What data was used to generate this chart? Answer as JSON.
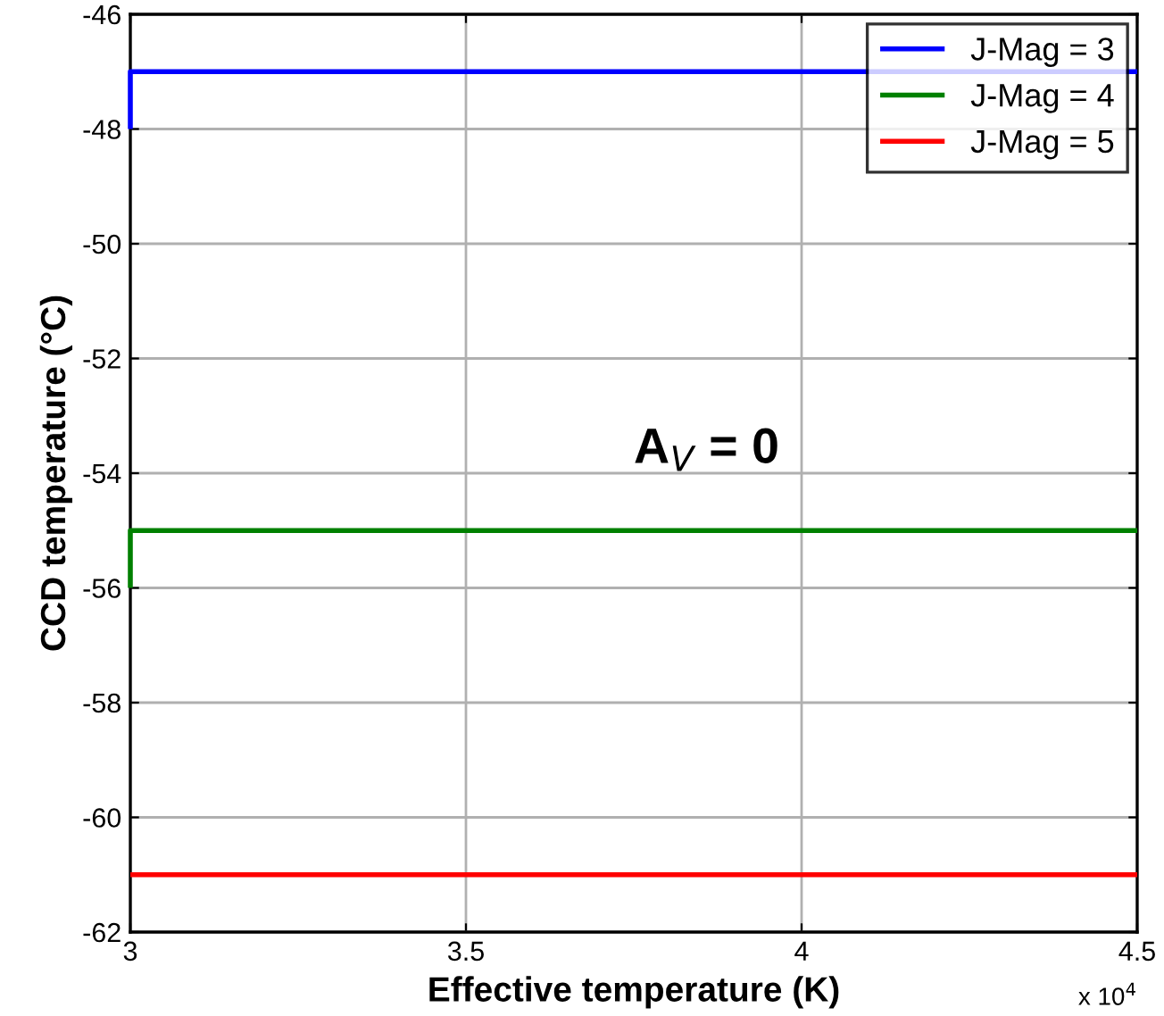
{
  "chart_data": {
    "type": "step",
    "xlabel": "Effective temperature (K)",
    "ylabel": "CCD temperature (°C)",
    "series": [
      {
        "name": "J-Mag = 3",
        "color": "#0000ff",
        "values": [
          -48,
          -47
        ]
      },
      {
        "name": "J-Mag = 4",
        "color": "#008000",
        "values": [
          -56,
          -55
        ]
      },
      {
        "name": "J-Mag = 5",
        "color": "#ff0000",
        "values": [
          -61,
          -61
        ]
      }
    ],
    "x": [
      3,
      4.5
    ],
    "xlim": [
      3,
      4.5
    ],
    "ylim": [
      -62,
      -46
    ],
    "xticks": [
      3,
      3.5,
      4,
      4.5
    ],
    "yticks": [
      -62,
      -60,
      -58,
      -56,
      -54,
      -52,
      -50,
      -48,
      -46
    ],
    "annotations": [
      "A$_{V}$ = 0",
      "x 10$^{4}$"
    ],
    "grid": true,
    "legend": "top right",
    "line_style": "solid",
    "marker": "none"
  }
}
